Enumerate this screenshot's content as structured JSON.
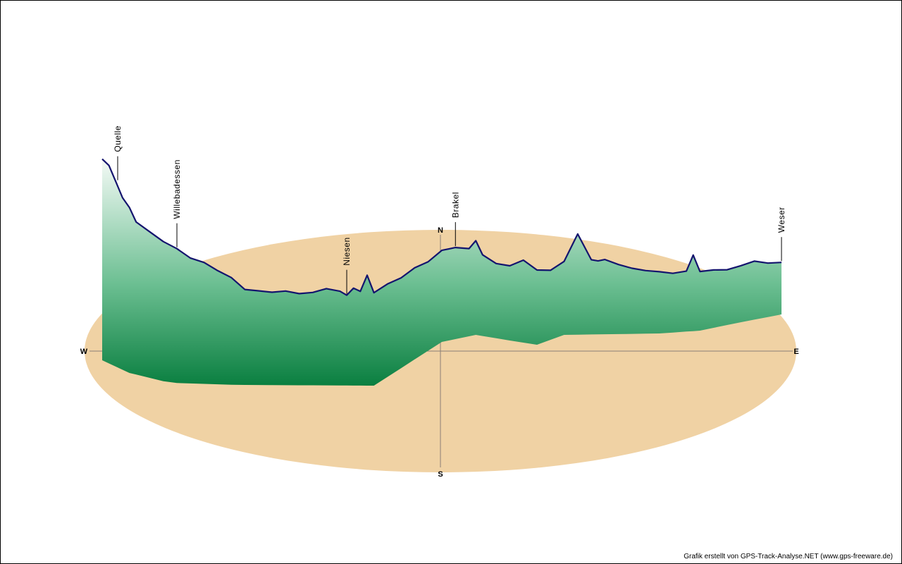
{
  "chart_data": {
    "type": "area",
    "style": "3d-elevation-profile-over-compass-disc",
    "compass": {
      "north": "N",
      "south": "S",
      "west": "W",
      "east": "E"
    },
    "waypoints": [
      {
        "name": "Quelle",
        "x": 0.0
      },
      {
        "name": "Willebadessen",
        "x": 0.11
      },
      {
        "name": "Niesen",
        "x": 0.36
      },
      {
        "name": "Brakel",
        "x": 0.52
      },
      {
        "name": "Weser",
        "x": 1.0
      }
    ],
    "profile": {
      "x": [
        0.0,
        0.01,
        0.02,
        0.03,
        0.04,
        0.05,
        0.07,
        0.09,
        0.11,
        0.13,
        0.15,
        0.17,
        0.19,
        0.21,
        0.23,
        0.25,
        0.27,
        0.29,
        0.31,
        0.33,
        0.35,
        0.36,
        0.37,
        0.38,
        0.39,
        0.4,
        0.42,
        0.44,
        0.46,
        0.48,
        0.5,
        0.52,
        0.54,
        0.55,
        0.56,
        0.58,
        0.6,
        0.62,
        0.64,
        0.66,
        0.68,
        0.7,
        0.72,
        0.73,
        0.74,
        0.76,
        0.78,
        0.8,
        0.82,
        0.84,
        0.86,
        0.87,
        0.88,
        0.9,
        0.92,
        0.94,
        0.96,
        0.98,
        1.0
      ],
      "elevation": [
        345,
        340,
        320,
        300,
        290,
        270,
        260,
        250,
        242,
        228,
        222,
        210,
        200,
        182,
        180,
        178,
        180,
        176,
        178,
        184,
        180,
        174,
        185,
        180,
        205,
        178,
        178,
        174,
        176,
        172,
        176,
        176,
        170,
        180,
        160,
        150,
        150,
        162,
        150,
        142,
        148,
        190,
        150,
        148,
        150,
        142,
        136,
        132,
        130,
        126,
        128,
        152,
        126,
        124,
        120,
        122,
        125,
        118,
        115
      ]
    },
    "footer": "Grafik erstellt von GPS-Track-Analyse.NET (www.gps-freeware.de)"
  }
}
